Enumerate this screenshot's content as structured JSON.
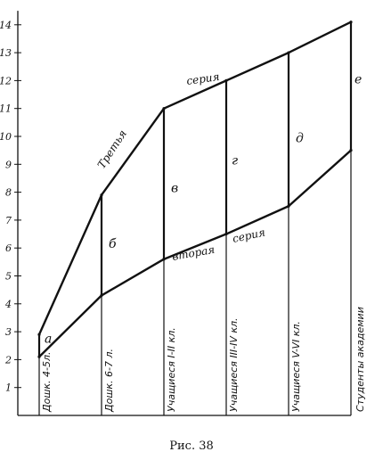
{
  "chart_data": {
    "type": "line",
    "caption": "Рис. 38",
    "title": "",
    "xlabel": "",
    "ylabel": "",
    "ylim": [
      0,
      14.5
    ],
    "yticks": [
      "1",
      "2",
      "3",
      "4",
      "5",
      "6",
      "7",
      "8",
      "9",
      "10",
      "11",
      "12",
      "13",
      "14"
    ],
    "categories": [
      "Дошк. 4-5л.",
      "Дошк. 6-7 л.",
      "Учащиеся I-II кл.",
      "Учащиеся III-IV кл.",
      "Учащиеся V-VI кл.",
      "Студенты академии"
    ],
    "x": [
      0,
      1,
      2,
      3,
      4,
      5
    ],
    "series": [
      {
        "name": "Третья серия",
        "name_parts": [
          "Третья",
          "серия"
        ],
        "values": [
          2.9,
          7.9,
          11.0,
          12.0,
          13.0,
          14.1
        ]
      },
      {
        "name": "Вторая серия",
        "name_parts": [
          "вторая",
          "серия"
        ],
        "values": [
          2.1,
          4.3,
          5.6,
          6.5,
          7.5,
          9.5
        ]
      }
    ],
    "segment_labels": [
      "а",
      "б",
      "в",
      "г",
      "д",
      "е"
    ],
    "grid": false
  }
}
